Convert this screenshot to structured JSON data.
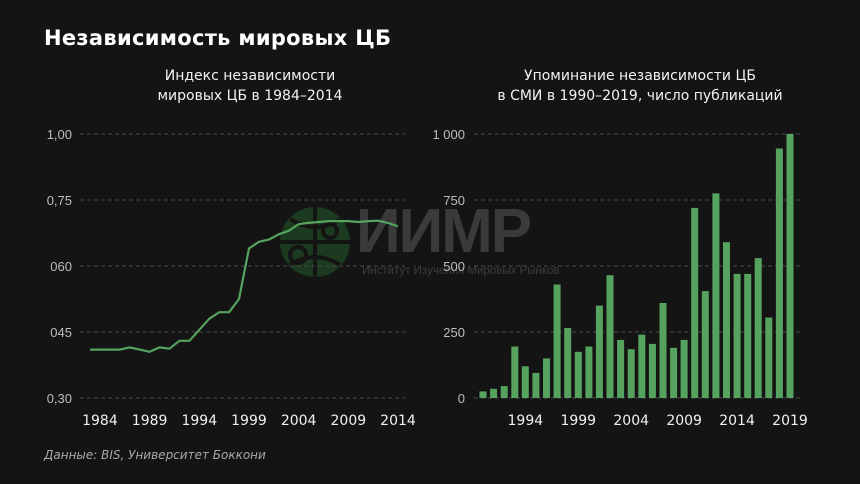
{
  "page": {
    "title": "Независимость мировых ЦБ",
    "source": "Данные: BIS, Университет Боккони"
  },
  "watermark": {
    "logo": "globe-icon",
    "text": "ИИМР",
    "subtitle": "Институт Изучения Мировых Рынков"
  },
  "colors": {
    "background": "#141414",
    "series": "#55a35f",
    "grid": "#4a4a4a",
    "axis_text": "#bdbdbd"
  },
  "chart_data": [
    {
      "type": "line",
      "title": "Индекс независимости мировых ЦБ в 1984–2014",
      "title_lines": [
        "Индекс независимости",
        "мировых ЦБ в 1984–2014"
      ],
      "xlabel": "",
      "ylabel": "",
      "x_tick_labels": [
        "1984",
        "1989",
        "1994",
        "1999",
        "2004",
        "2009",
        "2014"
      ],
      "y_tick_labels": [
        "1,00",
        "0,75",
        "060",
        "045",
        "0,30"
      ],
      "y_tick_values": [
        1.0,
        0.75,
        0.6,
        0.45,
        0.3
      ],
      "grid": true,
      "x": [
        1983,
        1984,
        1985,
        1986,
        1987,
        1988,
        1989,
        1990,
        1991,
        1992,
        1993,
        1994,
        1995,
        1996,
        1997,
        1998,
        1999,
        2000,
        2001,
        2002,
        2003,
        2004,
        2005,
        2006,
        2007,
        2008,
        2009,
        2010,
        2011,
        2012,
        2013,
        2014
      ],
      "values": [
        0.41,
        0.41,
        0.41,
        0.41,
        0.415,
        0.41,
        0.405,
        0.415,
        0.412,
        0.43,
        0.43,
        0.455,
        0.48,
        0.495,
        0.495,
        0.525,
        0.64,
        0.655,
        0.66,
        0.672,
        0.68,
        0.695,
        0.698,
        0.7,
        0.702,
        0.702,
        0.702,
        0.7,
        0.702,
        0.703,
        0.698,
        0.69
      ]
    },
    {
      "type": "bar",
      "title": "Упоминание независимости ЦБ в СМИ в 1990–2019, число публикаций",
      "title_lines": [
        "Упоминание независимости ЦБ",
        "в СМИ в 1990–2019, число публикаций"
      ],
      "xlabel": "",
      "ylabel": "",
      "ylim": [
        0,
        1000
      ],
      "y_tick_labels": [
        "1 000",
        "750",
        "500",
        "250",
        "0"
      ],
      "y_tick_values": [
        1000,
        750,
        500,
        250,
        0
      ],
      "x_tick_labels": [
        "1994",
        "1999",
        "2004",
        "2009",
        "2014",
        "2019"
      ],
      "grid": true,
      "categories": [
        "1990",
        "1991",
        "1992",
        "1993",
        "1994",
        "1995",
        "1996",
        "1997",
        "1998",
        "1999",
        "2000",
        "2001",
        "2002",
        "2003",
        "2004",
        "2005",
        "2006",
        "2007",
        "2008",
        "2009",
        "2010",
        "2011",
        "2012",
        "2013",
        "2014",
        "2015",
        "2016",
        "2017",
        "2018",
        "2019"
      ],
      "values": [
        25,
        35,
        45,
        195,
        120,
        95,
        150,
        430,
        265,
        175,
        195,
        350,
        465,
        220,
        185,
        240,
        205,
        360,
        190,
        220,
        720,
        405,
        775,
        590,
        470,
        470,
        530,
        305,
        945,
        1000
      ]
    }
  ]
}
